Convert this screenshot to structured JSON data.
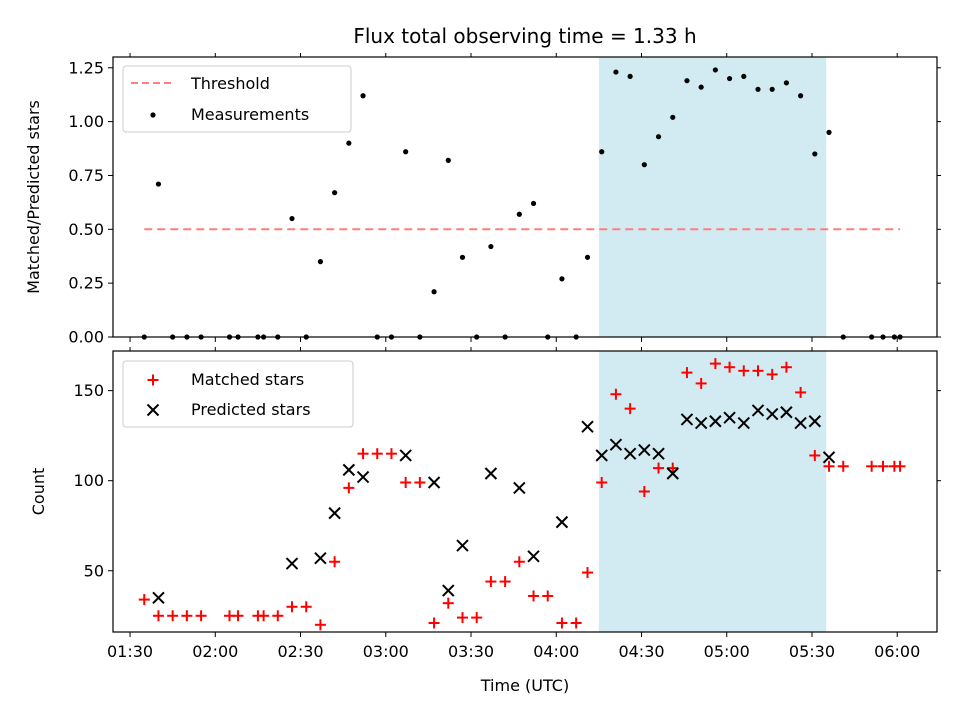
{
  "chart_data": {
    "type": "scatter",
    "title": "Flux total observing time = 1.33 h",
    "xlabel": "Time (UTC)",
    "x_ticks": [
      "01:30",
      "02:00",
      "02:30",
      "03:00",
      "03:30",
      "04:00",
      "04:30",
      "05:00",
      "05:30",
      "06:00"
    ],
    "x_range": [
      "01:24",
      "06:14"
    ],
    "highlight_span": [
      "04:15",
      "05:35"
    ],
    "colors": {
      "threshold": "#ff7f7f",
      "matched": "#ff0000",
      "predicted": "#000000",
      "measurement": "#000000",
      "span": "#add8e6"
    },
    "panels": [
      {
        "ylabel": "Matched/Predicted stars",
        "ylim": [
          0,
          1.3
        ],
        "y_ticks": [
          "0.00",
          "0.25",
          "0.50",
          "0.75",
          "1.00",
          "1.25"
        ],
        "legend": [
          "Threshold",
          "Measurements"
        ],
        "threshold": {
          "name": "Threshold",
          "value": 0.5,
          "x_start": "01:35",
          "x_end": "06:01"
        },
        "series": [
          {
            "name": "Measurements",
            "marker": "dot",
            "points": [
              [
                "01:35",
                0
              ],
              [
                "01:40",
                0.71
              ],
              [
                "01:45",
                0
              ],
              [
                "01:50",
                0
              ],
              [
                "01:55",
                0
              ],
              [
                "02:05",
                0
              ],
              [
                "02:08",
                0
              ],
              [
                "02:15",
                0
              ],
              [
                "02:17",
                0
              ],
              [
                "02:22",
                0
              ],
              [
                "02:27",
                0.55
              ],
              [
                "02:32",
                0
              ],
              [
                "02:37",
                0.35
              ],
              [
                "02:42",
                0.67
              ],
              [
                "02:47",
                0.9
              ],
              [
                "02:52",
                1.12
              ],
              [
                "02:57",
                0
              ],
              [
                "03:02",
                0
              ],
              [
                "03:07",
                0.86
              ],
              [
                "03:12",
                0
              ],
              [
                "03:17",
                0.21
              ],
              [
                "03:22",
                0.82
              ],
              [
                "03:27",
                0.37
              ],
              [
                "03:32",
                0
              ],
              [
                "03:37",
                0.42
              ],
              [
                "03:42",
                0
              ],
              [
                "03:47",
                0.57
              ],
              [
                "03:52",
                0.62
              ],
              [
                "03:57",
                0
              ],
              [
                "04:02",
                0.27
              ],
              [
                "04:07",
                0
              ],
              [
                "04:11",
                0.37
              ],
              [
                "04:16",
                0.86
              ],
              [
                "04:21",
                1.23
              ],
              [
                "04:26",
                1.21
              ],
              [
                "04:31",
                0.8
              ],
              [
                "04:36",
                0.93
              ],
              [
                "04:41",
                1.02
              ],
              [
                "04:46",
                1.19
              ],
              [
                "04:51",
                1.16
              ],
              [
                "04:56",
                1.24
              ],
              [
                "05:01",
                1.2
              ],
              [
                "05:06",
                1.21
              ],
              [
                "05:11",
                1.15
              ],
              [
                "05:16",
                1.15
              ],
              [
                "05:21",
                1.18
              ],
              [
                "05:26",
                1.12
              ],
              [
                "05:31",
                0.85
              ],
              [
                "05:36",
                0.95
              ],
              [
                "05:41",
                0
              ],
              [
                "05:51",
                0
              ],
              [
                "05:55",
                0
              ],
              [
                "05:59",
                0
              ],
              [
                "06:01",
                0
              ]
            ]
          }
        ]
      },
      {
        "ylabel": "Count",
        "ylim": [
          16,
          172
        ],
        "y_ticks": [
          "50",
          "100",
          "150"
        ],
        "legend": [
          "Matched stars",
          "Predicted stars"
        ],
        "series": [
          {
            "name": "Matched stars",
            "marker": "plus",
            "points": [
              [
                "01:35",
                34
              ],
              [
                "01:40",
                25
              ],
              [
                "01:45",
                25
              ],
              [
                "01:50",
                25
              ],
              [
                "01:55",
                25
              ],
              [
                "02:05",
                25
              ],
              [
                "02:08",
                25
              ],
              [
                "02:15",
                25
              ],
              [
                "02:17",
                25
              ],
              [
                "02:22",
                25
              ],
              [
                "02:27",
                30
              ],
              [
                "02:32",
                30
              ],
              [
                "02:37",
                20
              ],
              [
                "02:42",
                55
              ],
              [
                "02:47",
                96
              ],
              [
                "02:52",
                115
              ],
              [
                "02:57",
                115
              ],
              [
                "03:02",
                115
              ],
              [
                "03:07",
                99
              ],
              [
                "03:12",
                99
              ],
              [
                "03:17",
                21
              ],
              [
                "03:22",
                32
              ],
              [
                "03:27",
                24
              ],
              [
                "03:32",
                24
              ],
              [
                "03:37",
                44
              ],
              [
                "03:42",
                44
              ],
              [
                "03:47",
                55
              ],
              [
                "03:52",
                36
              ],
              [
                "03:57",
                36
              ],
              [
                "04:02",
                21
              ],
              [
                "04:07",
                21
              ],
              [
                "04:11",
                49
              ],
              [
                "04:16",
                99
              ],
              [
                "04:21",
                148
              ],
              [
                "04:26",
                140
              ],
              [
                "04:31",
                94
              ],
              [
                "04:36",
                107
              ],
              [
                "04:41",
                107
              ],
              [
                "04:46",
                160
              ],
              [
                "04:51",
                154
              ],
              [
                "04:56",
                165
              ],
              [
                "05:01",
                163
              ],
              [
                "05:06",
                161
              ],
              [
                "05:11",
                161
              ],
              [
                "05:16",
                159
              ],
              [
                "05:21",
                163
              ],
              [
                "05:26",
                149
              ],
              [
                "05:31",
                114
              ],
              [
                "05:36",
                108
              ],
              [
                "05:41",
                108
              ],
              [
                "05:51",
                108
              ],
              [
                "05:55",
                108
              ],
              [
                "05:59",
                108
              ],
              [
                "06:01",
                108
              ]
            ]
          },
          {
            "name": "Predicted stars",
            "marker": "x",
            "points": [
              [
                "01:40",
                35
              ],
              [
                "02:27",
                54
              ],
              [
                "02:37",
                57
              ],
              [
                "02:42",
                82
              ],
              [
                "02:47",
                106
              ],
              [
                "02:52",
                102
              ],
              [
                "03:07",
                114
              ],
              [
                "03:17",
                99
              ],
              [
                "03:22",
                39
              ],
              [
                "03:27",
                64
              ],
              [
                "03:37",
                104
              ],
              [
                "03:47",
                96
              ],
              [
                "03:52",
                58
              ],
              [
                "04:02",
                77
              ],
              [
                "04:11",
                130
              ],
              [
                "04:16",
                114
              ],
              [
                "04:21",
                120
              ],
              [
                "04:26",
                115
              ],
              [
                "04:31",
                117
              ],
              [
                "04:36",
                115
              ],
              [
                "04:41",
                104
              ],
              [
                "04:46",
                134
              ],
              [
                "04:51",
                132
              ],
              [
                "04:56",
                133
              ],
              [
                "05:01",
                135
              ],
              [
                "05:06",
                132
              ],
              [
                "05:11",
                139
              ],
              [
                "05:16",
                137
              ],
              [
                "05:21",
                138
              ],
              [
                "05:26",
                132
              ],
              [
                "05:31",
                133
              ],
              [
                "05:36",
                113
              ]
            ]
          }
        ]
      }
    ]
  }
}
